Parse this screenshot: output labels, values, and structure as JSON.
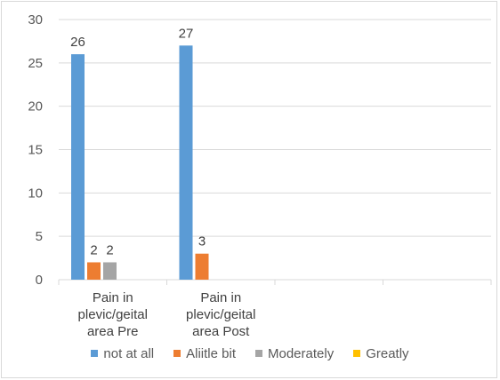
{
  "chart_data": {
    "type": "bar",
    "title": "",
    "xlabel": "",
    "ylabel": "",
    "ylim": [
      0,
      30
    ],
    "yticks": [
      0,
      5,
      10,
      15,
      20,
      25,
      30
    ],
    "grid": true,
    "legend_position": "bottom",
    "categories": [
      [
        "Pain in",
        "plevic/geital",
        "area Pre"
      ],
      [
        "Pain in",
        "plevic/geital",
        "area Post"
      ],
      [],
      []
    ],
    "series": [
      {
        "name": "not at all",
        "color": "#5B9BD5",
        "values": [
          26,
          27,
          null,
          null
        ]
      },
      {
        "name": "Aliitle bit",
        "color": "#ED7D31",
        "values": [
          2,
          3,
          null,
          null
        ]
      },
      {
        "name": "Moderately",
        "color": "#A5A5A5",
        "values": [
          2,
          null,
          null,
          null
        ]
      },
      {
        "name": "Greatly",
        "color": "#FFC000",
        "values": [
          null,
          null,
          null,
          null
        ]
      }
    ]
  }
}
